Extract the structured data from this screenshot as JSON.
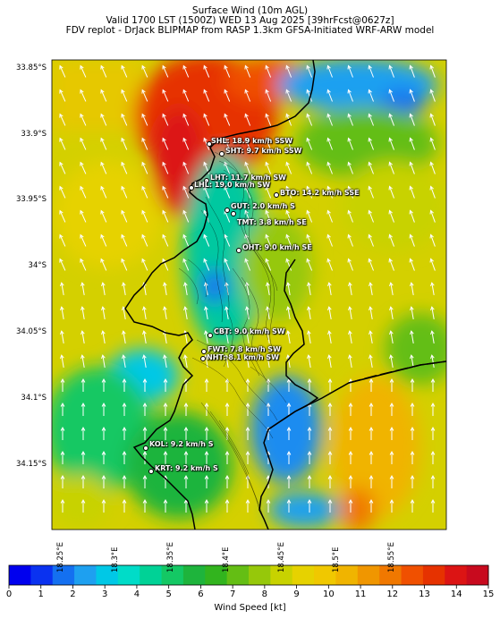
{
  "header": {
    "line1": "Surface Wind (10m AGL)",
    "line2": "Valid 1700 LST (1500Z) WED 13 Aug 2025 [39hrFcst@0627z]",
    "line3": "FDV replot - DrJack BLIPMAP from RASP 1.3km GFSA-Initiated WRF-ARW model"
  },
  "axes": {
    "y_ticks": [
      "33.85°S",
      "33.9°S",
      "33.95°S",
      "34°S",
      "34.05°S",
      "34.1°S",
      "34.15°S"
    ],
    "x_ticks": [
      "18.25°E",
      "18.3°E",
      "18.35°E",
      "18.4°E",
      "18.45°E",
      "18.5°E",
      "18.55°E"
    ]
  },
  "stations": [
    {
      "label": "SHL: 18.9 km/h SSW"
    },
    {
      "label": "SHT: 9.7 km/h SSW"
    },
    {
      "label": "LHT: 11.7 km/h SW"
    },
    {
      "label": "LHL: 19.0 km/h SW"
    },
    {
      "label": "BTO: 14.2 km/h SSE"
    },
    {
      "label": "GUT: 2.0 km/h S"
    },
    {
      "label": "TMT: 3.8 km/h SE"
    },
    {
      "label": "OHT: 9.0 km/h SE"
    },
    {
      "label": "CBT: 9.0 km/h SW"
    },
    {
      "label": "FWT: 7.8 km/h SW"
    },
    {
      "label": "NHT: 8.1 km/h SW"
    },
    {
      "label": "KOL: 9.2 km/h S"
    },
    {
      "label": "KRT: 9.2 km/h S"
    }
  ],
  "colorbar": {
    "title": "Wind Speed [kt]",
    "ticks": [
      "0",
      "1",
      "2",
      "3",
      "4",
      "5",
      "6",
      "7",
      "8",
      "9",
      "10",
      "11",
      "12",
      "13",
      "14",
      "15"
    ],
    "colors": [
      "#0000ee",
      "#0a32f0",
      "#1470f0",
      "#1ea0f0",
      "#00c8e6",
      "#00dcc8",
      "#00d296",
      "#14c864",
      "#1eb43c",
      "#32b41e",
      "#64be14",
      "#96c80a",
      "#c8d200",
      "#e6d200",
      "#f0c800",
      "#f0b400",
      "#f09600",
      "#f07800",
      "#f05000",
      "#e63200",
      "#dc1414",
      "#c80a1e"
    ]
  }
}
